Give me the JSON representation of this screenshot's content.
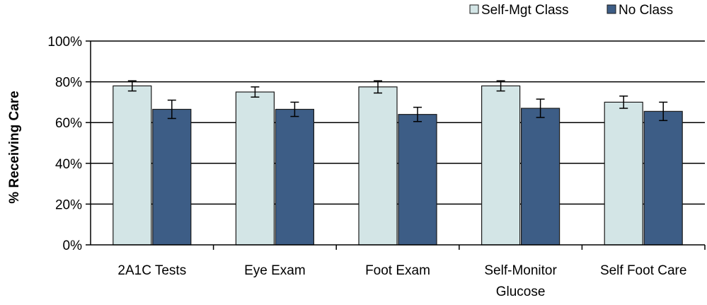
{
  "chart_data": {
    "type": "bar",
    "ylabel": "% Receiving Care",
    "xlabel": "",
    "ylim": [
      0,
      100
    ],
    "yticks": [
      0,
      20,
      40,
      60,
      80,
      100
    ],
    "ytick_labels": [
      "0%",
      "20%",
      "40%",
      "60%",
      "80%",
      "100%"
    ],
    "grid": true,
    "legend_position": "top-right",
    "categories": [
      [
        "2A1C Tests"
      ],
      [
        "Eye Exam"
      ],
      [
        "Foot Exam"
      ],
      [
        "Self-Monitor",
        "Glucose"
      ],
      [
        "Self Foot Care"
      ]
    ],
    "series": [
      {
        "name": "Self-Mgt Class",
        "color": "#d3e5e6",
        "values": [
          78,
          75,
          77.5,
          78,
          70
        ],
        "error": [
          2.5,
          2.5,
          3,
          2.5,
          3
        ]
      },
      {
        "name": "No Class",
        "color": "#3d5d86",
        "values": [
          66.5,
          66.5,
          64,
          67,
          65.5
        ],
        "error": [
          4.5,
          3.5,
          3.5,
          4.5,
          4.5
        ]
      }
    ]
  }
}
